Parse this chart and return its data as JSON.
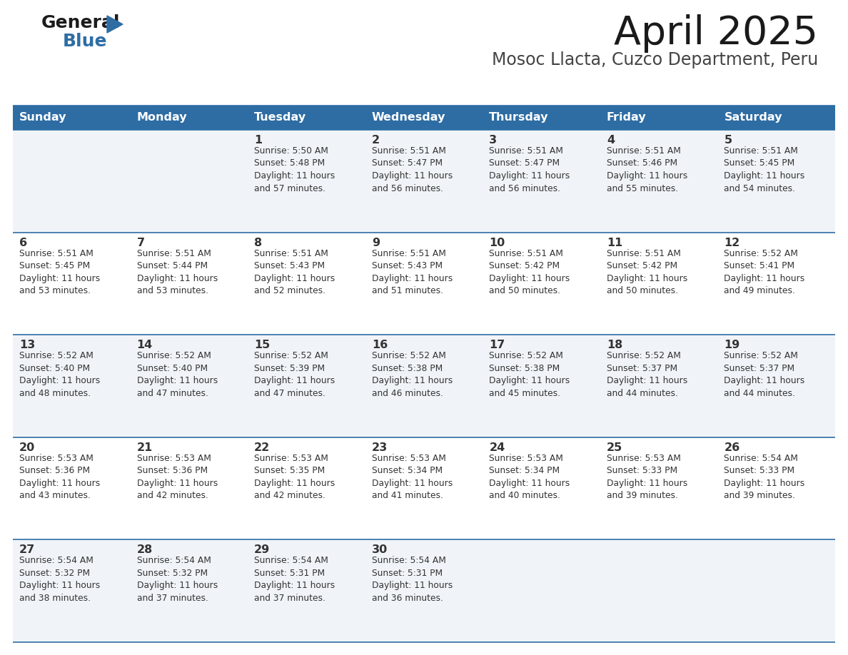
{
  "title": "April 2025",
  "subtitle": "Mosoc Llacta, Cuzco Department, Peru",
  "days_of_week": [
    "Sunday",
    "Monday",
    "Tuesday",
    "Wednesday",
    "Thursday",
    "Friday",
    "Saturday"
  ],
  "header_bg": "#2E6DA4",
  "header_text_color": "#FFFFFF",
  "row_bg_odd": "#F0F4F8",
  "row_bg_even": "#FFFFFF",
  "divider_color": "#2E6DA4",
  "text_color": "#333333",
  "title_color": "#1a1a1a",
  "subtitle_color": "#444444",
  "calendar_data": [
    [
      {
        "day": "",
        "info": ""
      },
      {
        "day": "",
        "info": ""
      },
      {
        "day": "1",
        "info": "Sunrise: 5:50 AM\nSunset: 5:48 PM\nDaylight: 11 hours\nand 57 minutes."
      },
      {
        "day": "2",
        "info": "Sunrise: 5:51 AM\nSunset: 5:47 PM\nDaylight: 11 hours\nand 56 minutes."
      },
      {
        "day": "3",
        "info": "Sunrise: 5:51 AM\nSunset: 5:47 PM\nDaylight: 11 hours\nand 56 minutes."
      },
      {
        "day": "4",
        "info": "Sunrise: 5:51 AM\nSunset: 5:46 PM\nDaylight: 11 hours\nand 55 minutes."
      },
      {
        "day": "5",
        "info": "Sunrise: 5:51 AM\nSunset: 5:45 PM\nDaylight: 11 hours\nand 54 minutes."
      }
    ],
    [
      {
        "day": "6",
        "info": "Sunrise: 5:51 AM\nSunset: 5:45 PM\nDaylight: 11 hours\nand 53 minutes."
      },
      {
        "day": "7",
        "info": "Sunrise: 5:51 AM\nSunset: 5:44 PM\nDaylight: 11 hours\nand 53 minutes."
      },
      {
        "day": "8",
        "info": "Sunrise: 5:51 AM\nSunset: 5:43 PM\nDaylight: 11 hours\nand 52 minutes."
      },
      {
        "day": "9",
        "info": "Sunrise: 5:51 AM\nSunset: 5:43 PM\nDaylight: 11 hours\nand 51 minutes."
      },
      {
        "day": "10",
        "info": "Sunrise: 5:51 AM\nSunset: 5:42 PM\nDaylight: 11 hours\nand 50 minutes."
      },
      {
        "day": "11",
        "info": "Sunrise: 5:51 AM\nSunset: 5:42 PM\nDaylight: 11 hours\nand 50 minutes."
      },
      {
        "day": "12",
        "info": "Sunrise: 5:52 AM\nSunset: 5:41 PM\nDaylight: 11 hours\nand 49 minutes."
      }
    ],
    [
      {
        "day": "13",
        "info": "Sunrise: 5:52 AM\nSunset: 5:40 PM\nDaylight: 11 hours\nand 48 minutes."
      },
      {
        "day": "14",
        "info": "Sunrise: 5:52 AM\nSunset: 5:40 PM\nDaylight: 11 hours\nand 47 minutes."
      },
      {
        "day": "15",
        "info": "Sunrise: 5:52 AM\nSunset: 5:39 PM\nDaylight: 11 hours\nand 47 minutes."
      },
      {
        "day": "16",
        "info": "Sunrise: 5:52 AM\nSunset: 5:38 PM\nDaylight: 11 hours\nand 46 minutes."
      },
      {
        "day": "17",
        "info": "Sunrise: 5:52 AM\nSunset: 5:38 PM\nDaylight: 11 hours\nand 45 minutes."
      },
      {
        "day": "18",
        "info": "Sunrise: 5:52 AM\nSunset: 5:37 PM\nDaylight: 11 hours\nand 44 minutes."
      },
      {
        "day": "19",
        "info": "Sunrise: 5:52 AM\nSunset: 5:37 PM\nDaylight: 11 hours\nand 44 minutes."
      }
    ],
    [
      {
        "day": "20",
        "info": "Sunrise: 5:53 AM\nSunset: 5:36 PM\nDaylight: 11 hours\nand 43 minutes."
      },
      {
        "day": "21",
        "info": "Sunrise: 5:53 AM\nSunset: 5:36 PM\nDaylight: 11 hours\nand 42 minutes."
      },
      {
        "day": "22",
        "info": "Sunrise: 5:53 AM\nSunset: 5:35 PM\nDaylight: 11 hours\nand 42 minutes."
      },
      {
        "day": "23",
        "info": "Sunrise: 5:53 AM\nSunset: 5:34 PM\nDaylight: 11 hours\nand 41 minutes."
      },
      {
        "day": "24",
        "info": "Sunrise: 5:53 AM\nSunset: 5:34 PM\nDaylight: 11 hours\nand 40 minutes."
      },
      {
        "day": "25",
        "info": "Sunrise: 5:53 AM\nSunset: 5:33 PM\nDaylight: 11 hours\nand 39 minutes."
      },
      {
        "day": "26",
        "info": "Sunrise: 5:54 AM\nSunset: 5:33 PM\nDaylight: 11 hours\nand 39 minutes."
      }
    ],
    [
      {
        "day": "27",
        "info": "Sunrise: 5:54 AM\nSunset: 5:32 PM\nDaylight: 11 hours\nand 38 minutes."
      },
      {
        "day": "28",
        "info": "Sunrise: 5:54 AM\nSunset: 5:32 PM\nDaylight: 11 hours\nand 37 minutes."
      },
      {
        "day": "29",
        "info": "Sunrise: 5:54 AM\nSunset: 5:31 PM\nDaylight: 11 hours\nand 37 minutes."
      },
      {
        "day": "30",
        "info": "Sunrise: 5:54 AM\nSunset: 5:31 PM\nDaylight: 11 hours\nand 36 minutes."
      },
      {
        "day": "",
        "info": ""
      },
      {
        "day": "",
        "info": ""
      },
      {
        "day": "",
        "info": ""
      }
    ]
  ],
  "fig_width": 11.88,
  "fig_height": 9.18,
  "dpi": 100
}
